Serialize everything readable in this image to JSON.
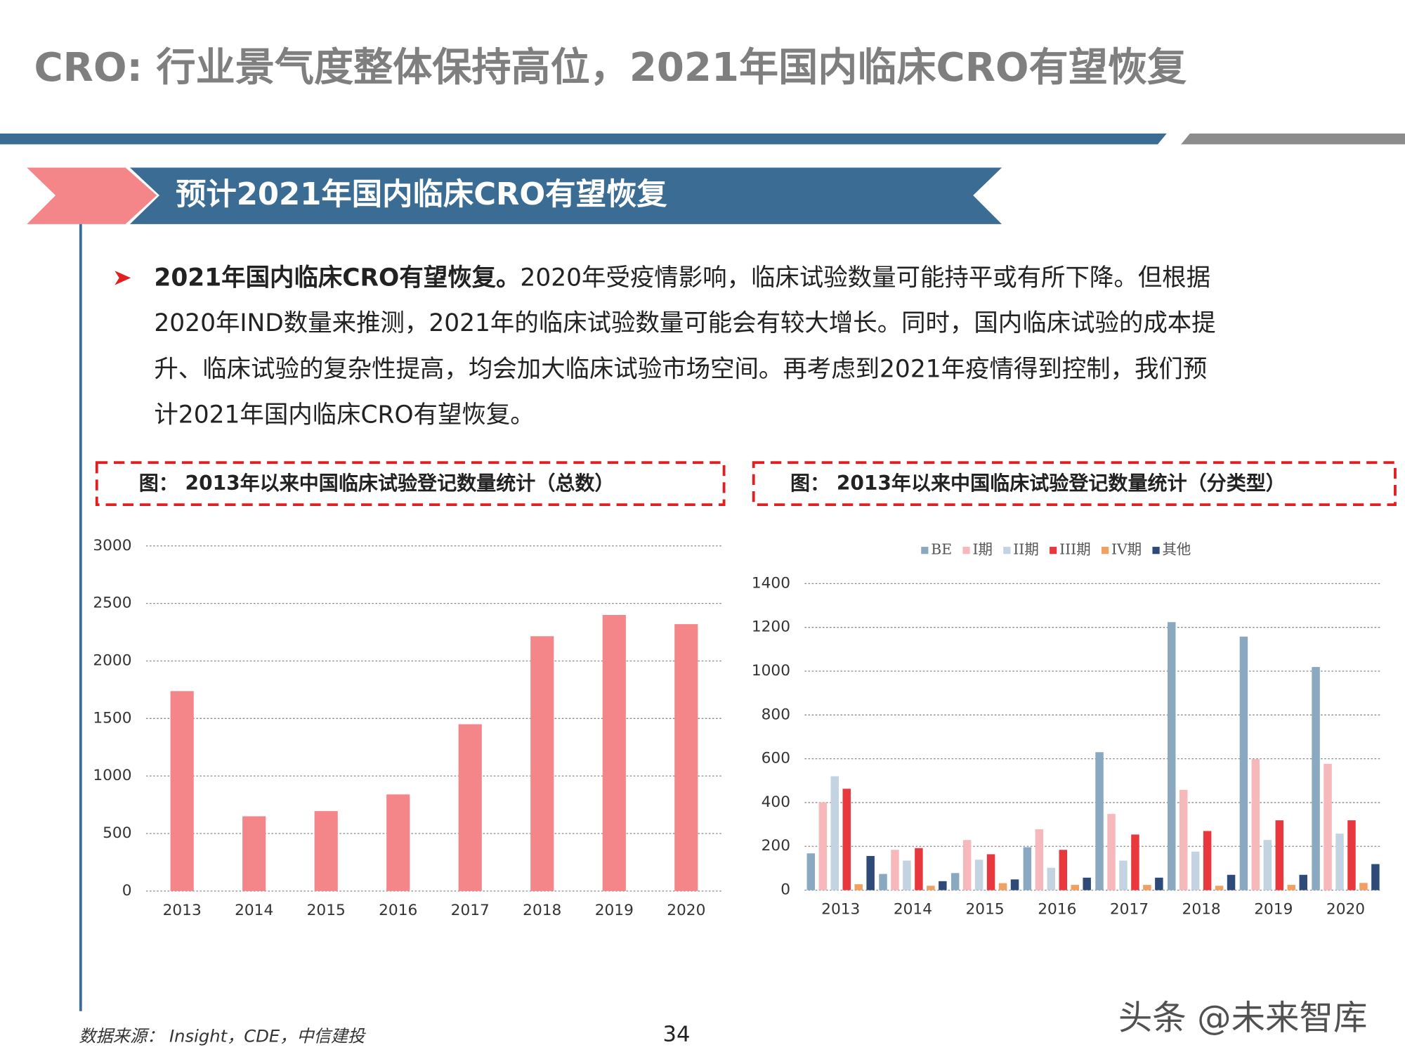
{
  "header": {
    "title": "CRO: 行业景气度整体保持高位，2021年国内临床CRO有望恢复"
  },
  "banner": {
    "title": "预计2021年国内临床CRO有望恢复"
  },
  "bullet": {
    "bold": "2021年国内临床CRO有望恢复。",
    "lines": [
      "2020年受疫情影响，临床试验数量可能持平或有所下降。但根据",
      "2020年IND数量来推测，2021年的临床试验数量可能会有较大增长。同时，国内临床试验的成本提",
      "升、临床试验的复杂性提高，均会加大临床试验市场空间。再考虑到2021年疫情得到控制，我们预",
      "计2021年国内临床CRO有望恢复。"
    ]
  },
  "chart_data": [
    {
      "type": "bar",
      "title": "图： 2013年以来中国临床试验登记数量统计（总数）",
      "categories": [
        "2013",
        "2014",
        "2015",
        "2016",
        "2017",
        "2018",
        "2019",
        "2020"
      ],
      "values": [
        1738,
        650,
        695,
        840,
        1450,
        2215,
        2400,
        2320
      ],
      "color": "#f4868a",
      "ylim": [
        0,
        3000
      ],
      "yticks": [
        0,
        500,
        1000,
        1500,
        2000,
        2500,
        3000
      ],
      "grid": true
    },
    {
      "type": "grouped-bar",
      "title": "图： 2013年以来中国临床试验登记数量统计（分类型）",
      "categories": [
        "2013",
        "2014",
        "2015",
        "2016",
        "2017",
        "2018",
        "2019",
        "2020"
      ],
      "series": [
        {
          "name": "BE",
          "color": "#8aa9c1",
          "values": [
            168,
            74,
            78,
            196,
            630,
            1224,
            1158,
            1019
          ]
        },
        {
          "name": "I期",
          "color": "#f7b8bc",
          "values": [
            401,
            184,
            229,
            278,
            348,
            458,
            598,
            577
          ]
        },
        {
          "name": "II期",
          "color": "#c3d3e1",
          "values": [
            520,
            135,
            139,
            102,
            135,
            176,
            229,
            258
          ]
        },
        {
          "name": "III期",
          "color": "#e8383d",
          "values": [
            463,
            192,
            164,
            184,
            254,
            270,
            319,
            319
          ]
        },
        {
          "name": "IV期",
          "color": "#f0a060",
          "values": [
            27,
            20,
            32,
            24,
            24,
            20,
            24,
            33
          ]
        },
        {
          "name": "其他",
          "color": "#2e4a78",
          "values": [
            156,
            41,
            49,
            57,
            57,
            70,
            70,
            119
          ]
        }
      ],
      "ylim": [
        0,
        1400
      ],
      "yticks": [
        0,
        200,
        400,
        600,
        800,
        1000,
        1200,
        1400
      ],
      "grid": true,
      "legend": "top"
    }
  ],
  "footer": {
    "source": "数据来源： Insight，CDE，中信建投",
    "page": "34",
    "watermark": "头条 @未来智库"
  }
}
